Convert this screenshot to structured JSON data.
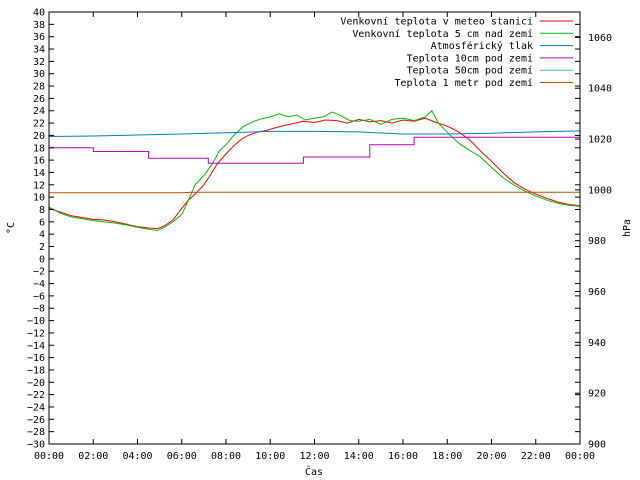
{
  "chart_data": {
    "type": "line",
    "xlabel": "Čas",
    "ylabel": "°C",
    "y2label": "hPa",
    "x_ticks": [
      "00:00",
      "02:00",
      "04:00",
      "06:00",
      "08:00",
      "10:00",
      "12:00",
      "14:00",
      "16:00",
      "18:00",
      "20:00",
      "22:00",
      "00:00"
    ],
    "xlim_hours": [
      0,
      24
    ],
    "ylim": [
      -30,
      40
    ],
    "y_tick_step": 2,
    "y2lim": [
      900,
      1070
    ],
    "y2_ticks": [
      900,
      920,
      940,
      960,
      980,
      1000,
      1020,
      1040,
      1060
    ],
    "legend_position": "top-right",
    "series": [
      {
        "name": "Venkovní teplota v meteo stanici",
        "color": "#ff0000",
        "axis": "left",
        "points": [
          [
            0,
            8.2
          ],
          [
            0.5,
            7.6
          ],
          [
            1,
            7.0
          ],
          [
            1.5,
            6.7
          ],
          [
            2,
            6.4
          ],
          [
            2.5,
            6.3
          ],
          [
            3,
            6.0
          ],
          [
            3.5,
            5.6
          ],
          [
            4,
            5.2
          ],
          [
            4.5,
            5.0
          ],
          [
            4.9,
            4.9
          ],
          [
            5.2,
            5.3
          ],
          [
            5.6,
            6.3
          ],
          [
            6,
            8.2
          ],
          [
            6.3,
            9.5
          ],
          [
            6.6,
            10.5
          ],
          [
            7,
            12.0
          ],
          [
            7.3,
            13.6
          ],
          [
            7.6,
            15.4
          ],
          [
            8,
            17.0
          ],
          [
            8.4,
            18.5
          ],
          [
            8.7,
            19.4
          ],
          [
            9,
            20.0
          ],
          [
            9.4,
            20.5
          ],
          [
            9.8,
            20.8
          ],
          [
            10.2,
            21.2
          ],
          [
            10.6,
            21.6
          ],
          [
            11,
            21.9
          ],
          [
            11.5,
            22.3
          ],
          [
            12,
            22.1
          ],
          [
            12.5,
            22.5
          ],
          [
            13,
            22.4
          ],
          [
            13.5,
            22.0
          ],
          [
            14,
            22.6
          ],
          [
            14.5,
            22.2
          ],
          [
            15,
            22.4
          ],
          [
            15.5,
            22.0
          ],
          [
            16,
            22.5
          ],
          [
            16.5,
            22.3
          ],
          [
            17,
            22.8
          ],
          [
            17.5,
            22.1
          ],
          [
            18,
            21.5
          ],
          [
            18.5,
            20.6
          ],
          [
            19,
            19.3
          ],
          [
            19.5,
            17.5
          ],
          [
            20,
            15.8
          ],
          [
            20.5,
            14.0
          ],
          [
            21,
            12.4
          ],
          [
            21.5,
            11.3
          ],
          [
            22,
            10.5
          ],
          [
            22.5,
            9.8
          ],
          [
            23,
            9.2
          ],
          [
            23.5,
            8.8
          ],
          [
            24,
            8.6
          ]
        ]
      },
      {
        "name": "Venkovní teplota 5 cm nad zemí",
        "color": "#00c000",
        "axis": "left",
        "points": [
          [
            0,
            8.4
          ],
          [
            0.5,
            7.4
          ],
          [
            1,
            6.8
          ],
          [
            1.5,
            6.5
          ],
          [
            2,
            6.2
          ],
          [
            2.5,
            6.0
          ],
          [
            3,
            5.8
          ],
          [
            3.5,
            5.5
          ],
          [
            4,
            5.1
          ],
          [
            4.5,
            4.8
          ],
          [
            4.9,
            4.6
          ],
          [
            5.2,
            5.1
          ],
          [
            5.6,
            6.0
          ],
          [
            6,
            7.2
          ],
          [
            6.3,
            9.5
          ],
          [
            6.6,
            12.0
          ],
          [
            7,
            13.5
          ],
          [
            7.4,
            15.5
          ],
          [
            7.7,
            17.5
          ],
          [
            8,
            18.5
          ],
          [
            8.4,
            20.2
          ],
          [
            8.8,
            21.5
          ],
          [
            9.2,
            22.2
          ],
          [
            9.6,
            22.7
          ],
          [
            10,
            23.0
          ],
          [
            10.4,
            23.5
          ],
          [
            10.8,
            23.0
          ],
          [
            11.2,
            23.3
          ],
          [
            11.6,
            22.5
          ],
          [
            12,
            22.8
          ],
          [
            12.4,
            23.0
          ],
          [
            12.8,
            23.8
          ],
          [
            13.2,
            23.2
          ],
          [
            13.6,
            22.4
          ],
          [
            14,
            22.3
          ],
          [
            14.5,
            22.6
          ],
          [
            15,
            21.8
          ],
          [
            15.5,
            22.6
          ],
          [
            16,
            22.8
          ],
          [
            16.5,
            22.4
          ],
          [
            17,
            23.0
          ],
          [
            17.3,
            24.0
          ],
          [
            17.6,
            22.0
          ],
          [
            18,
            20.5
          ],
          [
            18.5,
            18.8
          ],
          [
            19,
            17.6
          ],
          [
            19.5,
            16.5
          ],
          [
            20,
            14.8
          ],
          [
            20.5,
            13.2
          ],
          [
            21,
            12.0
          ],
          [
            21.5,
            11.0
          ],
          [
            22,
            10.2
          ],
          [
            22.5,
            9.5
          ],
          [
            23,
            9.0
          ],
          [
            23.5,
            8.7
          ],
          [
            24,
            8.5
          ]
        ]
      },
      {
        "name": "Atmosférický tlak",
        "color": "#0080c0",
        "axis": "right",
        "points": [
          [
            0,
            1021.0
          ],
          [
            2,
            1021.2
          ],
          [
            4,
            1021.6
          ],
          [
            6,
            1022.0
          ],
          [
            8,
            1022.5
          ],
          [
            10,
            1023.0
          ],
          [
            12,
            1023.0
          ],
          [
            14,
            1022.8
          ],
          [
            16,
            1022.0
          ],
          [
            18,
            1022.0
          ],
          [
            20,
            1022.3
          ],
          [
            22,
            1022.8
          ],
          [
            24,
            1023.2
          ]
        ]
      },
      {
        "name": "Teplota 10cm pod zemí",
        "color": "#c000c0",
        "axis": "left",
        "steps": true,
        "points": [
          [
            0,
            18.0
          ],
          [
            2,
            17.4
          ],
          [
            4.5,
            16.3
          ],
          [
            7.2,
            15.5
          ],
          [
            11.5,
            16.5
          ],
          [
            14.5,
            18.5
          ],
          [
            16.5,
            19.7
          ],
          [
            24,
            19.7
          ]
        ]
      },
      {
        "name": "Teplota 50cm pod zemí",
        "color": "#40c0c0",
        "axis": "left",
        "points": []
      },
      {
        "name": "Teplota 1 metr pod zemí",
        "color": "#c05000",
        "axis": "left",
        "points": [
          [
            0,
            10.7
          ],
          [
            6,
            10.7
          ],
          [
            6.5,
            10.8
          ],
          [
            24,
            10.8
          ]
        ]
      }
    ]
  }
}
